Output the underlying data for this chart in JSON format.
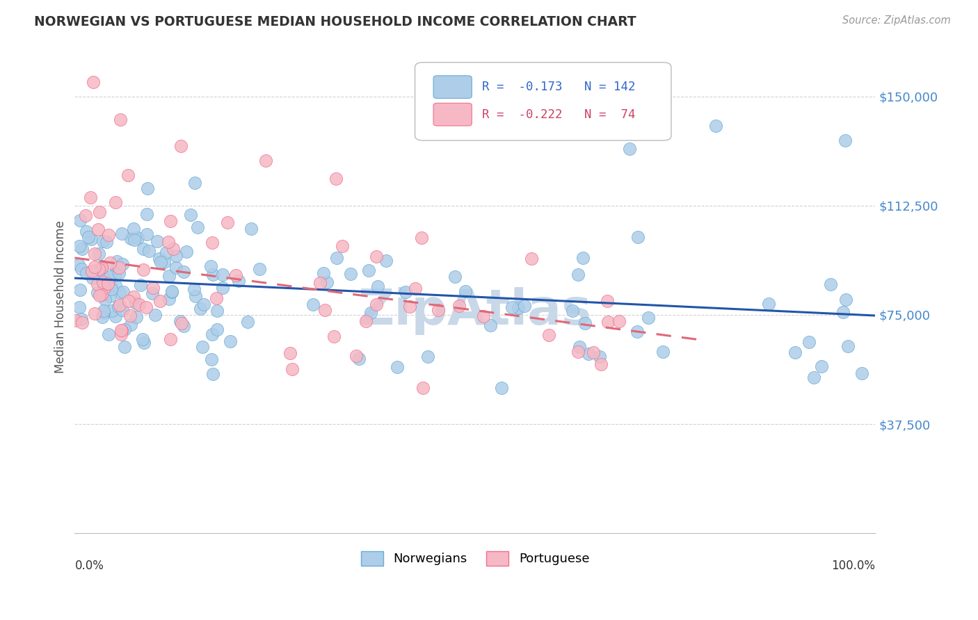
{
  "title": "NORWEGIAN VS PORTUGUESE MEDIAN HOUSEHOLD INCOME CORRELATION CHART",
  "source": "Source: ZipAtlas.com",
  "ylabel": "Median Household Income",
  "ytick_labels": [
    "$37,500",
    "$75,000",
    "$112,500",
    "$150,000"
  ],
  "ytick_values": [
    37500,
    75000,
    112500,
    150000
  ],
  "ymin": 0,
  "ymax": 162500,
  "xmin": 0.0,
  "xmax": 1.0,
  "background_color": "#ffffff",
  "watermark_text": "ZipAtlas",
  "watermark_color": "#c8d8e8",
  "norwegian_color": "#aecde8",
  "portuguese_color": "#f5b8c4",
  "norwegian_edge": "#6aadd5",
  "portuguese_edge": "#f07090",
  "trend_norwegian_color": "#2255aa",
  "trend_portuguese_color": "#e06878",
  "legend_r_norwegian": "-0.173",
  "legend_n_norwegian": "142",
  "legend_r_portuguese": "-0.222",
  "legend_n_portuguese": "74",
  "grid_color": "#cccccc",
  "tick_color": "#4488cc",
  "title_color": "#333333",
  "norwegians_label": "Norwegians",
  "portuguese_label": "Portuguese"
}
